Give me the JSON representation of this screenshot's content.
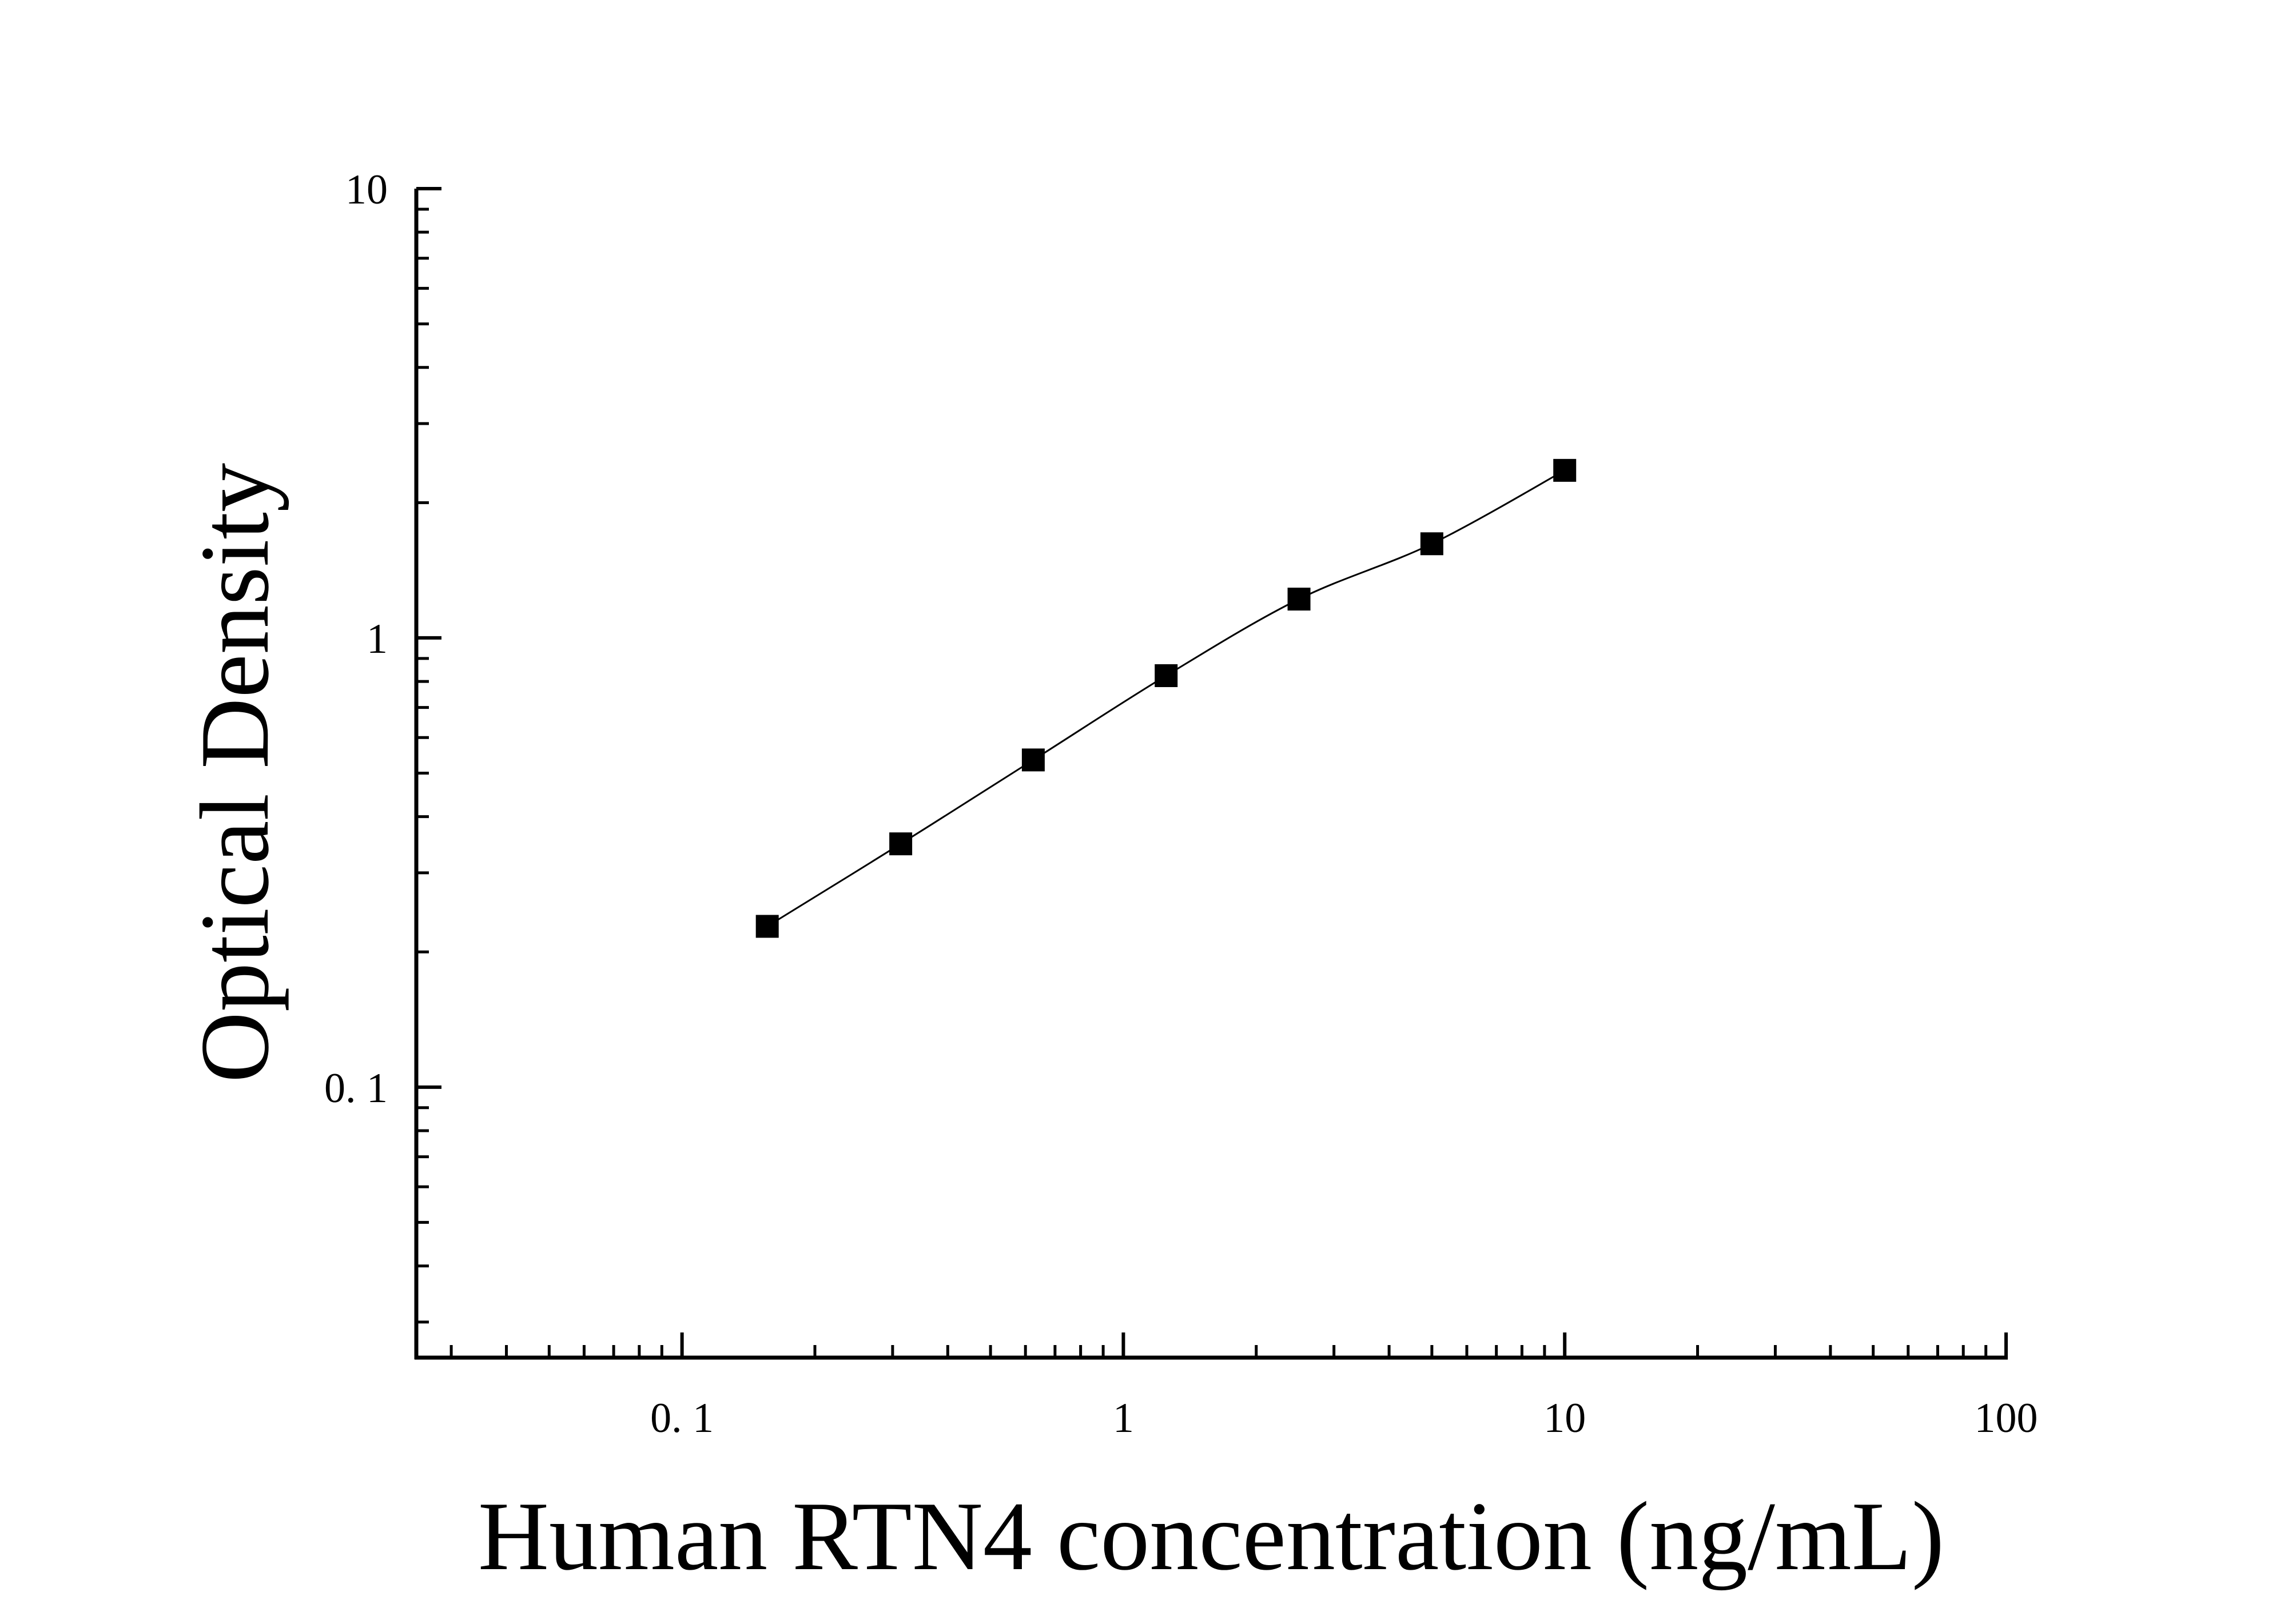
{
  "chart_data": {
    "type": "scatter",
    "title": "",
    "xlabel": "Human RTN4 concentration (ng/mL)",
    "ylabel": "Optical Density",
    "x_scale": "log",
    "y_scale": "log",
    "xlim": [
      0.025,
      100
    ],
    "ylim": [
      0.025,
      10
    ],
    "x_ticks": [
      {
        "value": 0.1,
        "label": "0. 1"
      },
      {
        "value": 1,
        "label": "1"
      },
      {
        "value": 10,
        "label": "10"
      },
      {
        "value": 100,
        "label": "100"
      }
    ],
    "y_ticks": [
      {
        "value": 0.1,
        "label": "0. 1"
      },
      {
        "value": 1,
        "label": "1"
      },
      {
        "value": 10,
        "label": "10"
      }
    ],
    "grid": false,
    "legend": "none",
    "marker": "square",
    "marker_color": "#000000",
    "line_color": "#000000",
    "series": [
      {
        "x": [
          0.156,
          0.313,
          0.625,
          1.25,
          2.5,
          5,
          10
        ],
        "y": [
          0.228,
          0.348,
          0.535,
          0.824,
          1.22,
          1.62,
          2.36
        ]
      }
    ]
  }
}
